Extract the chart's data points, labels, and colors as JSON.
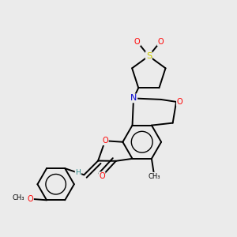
{
  "bg_color": "#ebebeb",
  "bond_color": "#000000",
  "bond_width": 1.4,
  "atom_colors": {
    "O": "#ff0000",
    "N": "#0000cd",
    "S": "#cccc00",
    "H": "#2e8b8b",
    "C": "#000000"
  },
  "figsize": [
    3.0,
    3.0
  ],
  "dpi": 100
}
